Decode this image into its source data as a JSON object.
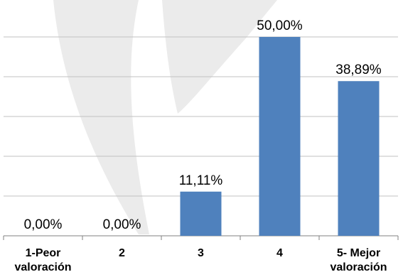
{
  "chart_data": {
    "type": "bar",
    "categories": [
      [
        "1-Peor",
        "valoración"
      ],
      [
        "2"
      ],
      [
        "3"
      ],
      [
        "4"
      ],
      [
        "5- Mejor",
        "valoración"
      ]
    ],
    "values": [
      0.0,
      0.0,
      11.11,
      50.0,
      38.89
    ],
    "data_labels": [
      "0,00%",
      "0,00%",
      "11,11%",
      "50,00%",
      "38,89%"
    ],
    "ylim": [
      0,
      55
    ],
    "grid": true,
    "legend": "none",
    "colors": {
      "bar": "#4F81BD",
      "gridline": "#C0C0C0",
      "axis": "#808080",
      "watermark": "#EBEBEB"
    }
  }
}
